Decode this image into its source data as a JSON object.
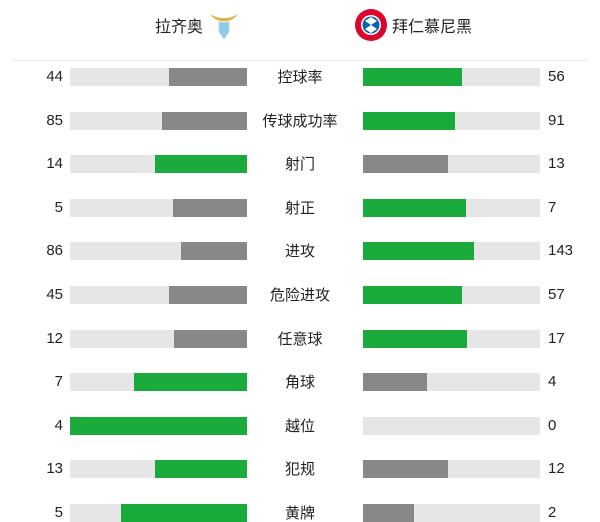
{
  "home": {
    "name": "拉齐奥",
    "logo": "lazio-eagle-crest"
  },
  "away": {
    "name": "拜仁慕尼黑",
    "logo": "bayern-munich-crest",
    "logo_text": "FC BAYERN MÜNCHEN"
  },
  "colors": {
    "leader": "#1aab3c",
    "trailer": "#888888",
    "track": "#e6e6e6"
  },
  "stats": [
    {
      "label": "控球率",
      "home": 44,
      "away": 56
    },
    {
      "label": "传球成功率",
      "home": 85,
      "away": 91
    },
    {
      "label": "射门",
      "home": 14,
      "away": 13
    },
    {
      "label": "射正",
      "home": 5,
      "away": 7
    },
    {
      "label": "进攻",
      "home": 86,
      "away": 143
    },
    {
      "label": "危险进攻",
      "home": 45,
      "away": 57
    },
    {
      "label": "任意球",
      "home": 12,
      "away": 17
    },
    {
      "label": "角球",
      "home": 7,
      "away": 4
    },
    {
      "label": "越位",
      "home": 4,
      "away": 0
    },
    {
      "label": "犯规",
      "home": 13,
      "away": 12
    },
    {
      "label": "黄牌",
      "home": 5,
      "away": 2
    }
  ]
}
